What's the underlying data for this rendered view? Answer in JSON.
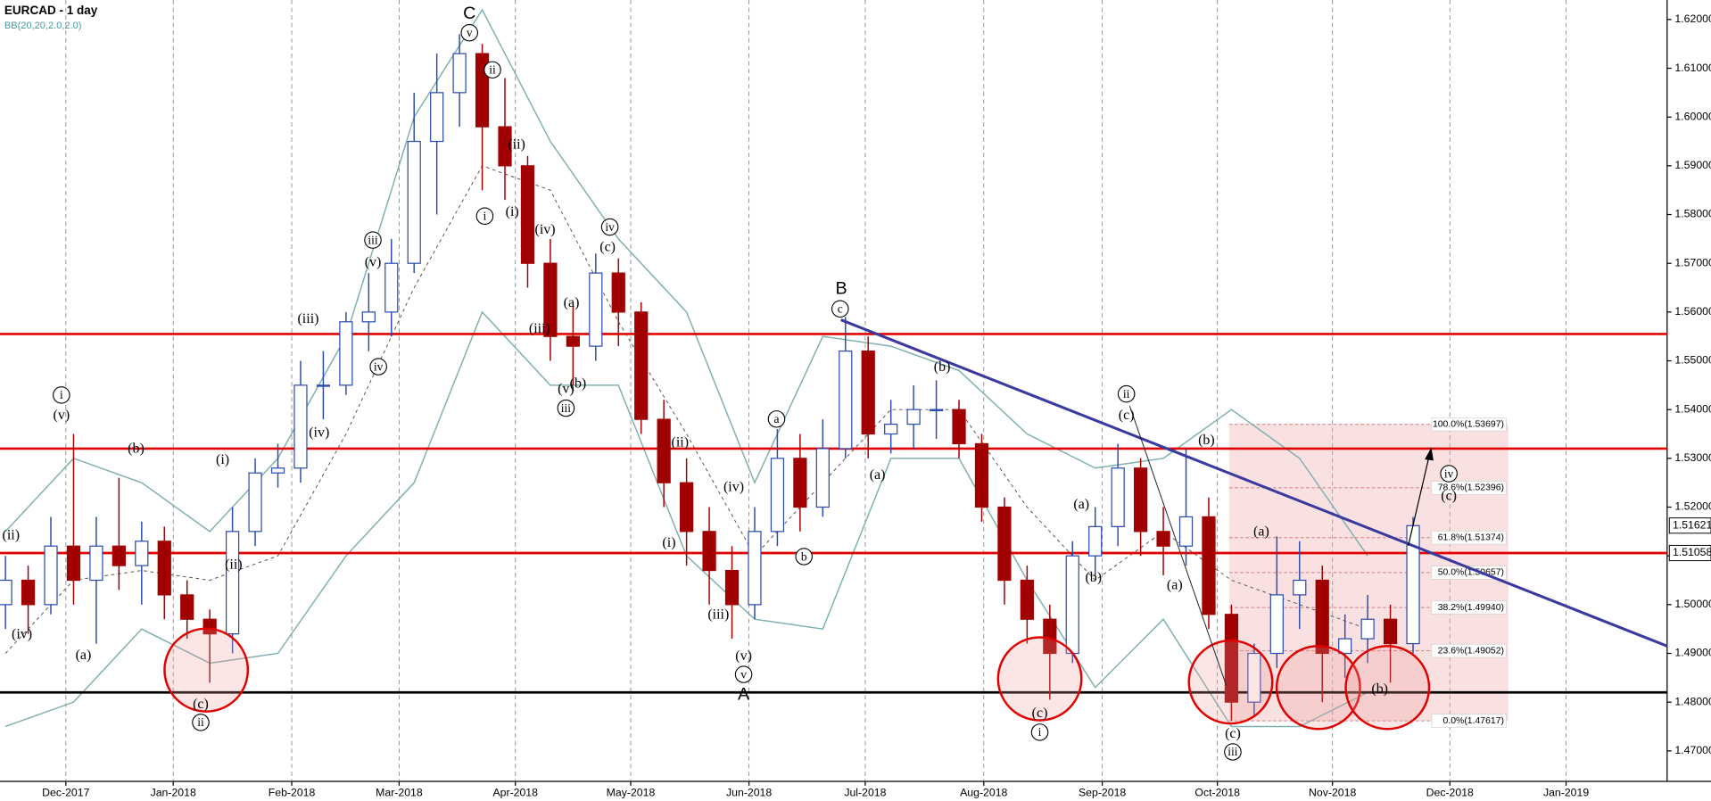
{
  "chart_data": {
    "type": "candlestick",
    "title": "EURCAD - 1 day",
    "xlim": [
      -0.24,
      73.19
    ],
    "ylim": [
      1.4642,
      1.624
    ],
    "xticks": [
      {
        "value": 2.66,
        "label": "Dec-2017"
      },
      {
        "value": 7.39,
        "label": "Jan-2018"
      },
      {
        "value": 12.61,
        "label": "Feb-2018"
      },
      {
        "value": 17.34,
        "label": "Mar-2018"
      },
      {
        "value": 22.46,
        "label": "Apr-2018"
      },
      {
        "value": 27.54,
        "label": "May-2018"
      },
      {
        "value": 32.75,
        "label": "Jun-2018"
      },
      {
        "value": 37.87,
        "label": "Jul-2018"
      },
      {
        "value": 43.09,
        "label": "Aug-2018"
      },
      {
        "value": 48.31,
        "label": "Sep-2018"
      },
      {
        "value": 53.38,
        "label": "Oct-2018"
      },
      {
        "value": 58.45,
        "label": "Nov-2018"
      },
      {
        "value": 63.62,
        "label": "Dec-2018"
      },
      {
        "value": 68.74,
        "label": "Jan-2019"
      }
    ],
    "yticks": [
      {
        "value": 1.47,
        "label": "1.47000"
      },
      {
        "value": 1.48,
        "label": "1.48000"
      },
      {
        "value": 1.49,
        "label": "1.49000"
      },
      {
        "value": 1.5,
        "label": "1.50000"
      },
      {
        "value": 1.51,
        "label": "1.51000"
      },
      {
        "value": 1.52,
        "label": "1.52000"
      },
      {
        "value": 1.53,
        "label": "1.53000"
      },
      {
        "value": 1.54,
        "label": "1.54000"
      },
      {
        "value": 1.55,
        "label": "1.55000"
      },
      {
        "value": 1.56,
        "label": "1.56000"
      },
      {
        "value": 1.57,
        "label": "1.57000"
      },
      {
        "value": 1.58,
        "label": "1.58000"
      },
      {
        "value": 1.59,
        "label": "1.59000"
      },
      {
        "value": 1.6,
        "label": "1.60000"
      },
      {
        "value": 1.61,
        "label": "1.61000"
      },
      {
        "value": 1.62,
        "label": "1.62000"
      }
    ],
    "xgrid": true,
    "up_color": "#2b4bb0",
    "down_color": "#a00000",
    "ohlc": {
      "open": [
        1.5,
        1.505,
        1.5,
        1.512,
        1.505,
        1.512,
        1.508,
        1.513,
        1.502,
        1.497,
        1.494,
        1.515,
        1.527,
        1.528,
        1.545,
        1.545,
        1.558,
        1.56,
        1.57,
        1.595,
        1.605,
        1.613,
        1.598,
        1.59,
        1.57,
        1.555,
        1.553,
        1.568,
        1.56,
        1.538,
        1.525,
        1.515,
        1.507,
        1.5,
        1.515,
        1.53,
        1.52,
        1.532,
        1.552,
        1.535,
        1.537,
        1.54,
        1.54,
        1.533,
        1.52,
        1.505,
        1.497,
        1.49,
        1.51,
        1.516,
        1.528,
        1.515,
        1.512,
        1.518,
        1.498,
        1.48,
        1.49,
        1.502,
        1.505,
        1.49,
        1.493,
        1.497,
        1.492
      ],
      "high": [
        1.51,
        1.508,
        1.518,
        1.535,
        1.518,
        1.526,
        1.517,
        1.516,
        1.505,
        1.499,
        1.52,
        1.53,
        1.533,
        1.55,
        1.552,
        1.56,
        1.568,
        1.575,
        1.605,
        1.613,
        1.617,
        1.615,
        1.608,
        1.592,
        1.575,
        1.562,
        1.572,
        1.571,
        1.562,
        1.542,
        1.53,
        1.52,
        1.512,
        1.52,
        1.536,
        1.535,
        1.538,
        1.559,
        1.555,
        1.542,
        1.545,
        1.546,
        1.542,
        1.535,
        1.522,
        1.508,
        1.5,
        1.513,
        1.52,
        1.533,
        1.53,
        1.52,
        1.532,
        1.522,
        1.5,
        1.492,
        1.514,
        1.513,
        1.508,
        1.498,
        1.502,
        1.5,
        1.518
      ],
      "low": [
        1.495,
        1.494,
        1.498,
        1.5,
        1.492,
        1.503,
        1.5,
        1.497,
        1.493,
        1.484,
        1.49,
        1.512,
        1.524,
        1.525,
        1.538,
        1.543,
        1.552,
        1.555,
        1.568,
        1.58,
        1.598,
        1.585,
        1.583,
        1.565,
        1.55,
        1.545,
        1.55,
        1.553,
        1.535,
        1.52,
        1.508,
        1.5,
        1.493,
        1.497,
        1.512,
        1.515,
        1.518,
        1.53,
        1.53,
        1.531,
        1.532,
        1.534,
        1.53,
        1.517,
        1.5,
        1.492,
        1.4805,
        1.488,
        1.506,
        1.512,
        1.51,
        1.506,
        1.508,
        1.495,
        1.4762,
        1.477,
        1.487,
        1.495,
        1.48,
        1.485,
        1.488,
        1.484,
        1.49
      ],
      "close": [
        1.505,
        1.5,
        1.512,
        1.505,
        1.512,
        1.508,
        1.513,
        1.502,
        1.497,
        1.494,
        1.515,
        1.527,
        1.528,
        1.545,
        1.545,
        1.558,
        1.56,
        1.57,
        1.595,
        1.605,
        1.613,
        1.598,
        1.59,
        1.57,
        1.555,
        1.553,
        1.568,
        1.56,
        1.538,
        1.525,
        1.515,
        1.507,
        1.5,
        1.515,
        1.53,
        1.52,
        1.532,
        1.552,
        1.535,
        1.537,
        1.54,
        1.54,
        1.533,
        1.52,
        1.505,
        1.497,
        1.49,
        1.51,
        1.516,
        1.528,
        1.515,
        1.512,
        1.518,
        1.498,
        1.48,
        1.49,
        1.502,
        1.505,
        1.49,
        1.493,
        1.497,
        1.492,
        1.5162
      ]
    },
    "bollinger": {
      "name": "BB(20,20,2.0,2.0)",
      "color": "#7fb0b0",
      "x": [
        0,
        3,
        6,
        9,
        12,
        15,
        18,
        21,
        24,
        27,
        30,
        33,
        36,
        39,
        42,
        45,
        48,
        51,
        54,
        57,
        60
      ],
      "upper": [
        1.515,
        1.53,
        1.525,
        1.515,
        1.53,
        1.555,
        1.6,
        1.622,
        1.595,
        1.575,
        1.56,
        1.525,
        1.555,
        1.553,
        1.548,
        1.535,
        1.528,
        1.53,
        1.54,
        1.53,
        1.51
      ],
      "middle": [
        1.49,
        1.505,
        1.507,
        1.505,
        1.51,
        1.535,
        1.565,
        1.59,
        1.585,
        1.558,
        1.535,
        1.51,
        1.525,
        1.54,
        1.54,
        1.52,
        1.505,
        1.515,
        1.505,
        1.5,
        1.495
      ],
      "lower": [
        1.475,
        1.48,
        1.495,
        1.488,
        1.49,
        1.51,
        1.525,
        1.56,
        1.545,
        1.545,
        1.51,
        1.497,
        1.495,
        1.53,
        1.53,
        1.505,
        1.483,
        1.497,
        1.475,
        1.475,
        1.482
      ]
    },
    "levels": [
      {
        "value": 1.5555,
        "color": "#e00000"
      },
      {
        "value": 1.532,
        "color": "#e00000"
      },
      {
        "value": 1.51058,
        "color": "#e00000"
      },
      {
        "value": 1.482,
        "color": "#000000"
      }
    ],
    "trendline": {
      "x": [
        36.8,
        73.19
      ],
      "y": [
        1.5584,
        1.4915
      ],
      "color": "#3a3aa0"
    },
    "fib": {
      "x": [
        53.9,
        66.2
      ],
      "color": "#d08080",
      "levels": [
        {
          "value": 1.53697,
          "label": "100.0%(1.53697)"
        },
        {
          "value": 1.52396,
          "label": "78.6%(1.52396)"
        },
        {
          "value": 1.51374,
          "label": "61.8%(1.51374)"
        },
        {
          "value": 1.50657,
          "label": "50.0%(1.50657)"
        },
        {
          "value": 1.4994,
          "label": "38.2%(1.49940)"
        },
        {
          "value": 1.49052,
          "label": "23.6%(1.49052)"
        },
        {
          "value": 1.47617,
          "label": "0.0%(1.47617)"
        }
      ]
    },
    "last_prices": [
      1.51621,
      1.51058
    ],
    "annotations": [
      {
        "text": "C"
      },
      {
        "text": "v",
        "circled": true
      },
      {
        "text": "ii",
        "circled": true
      },
      {
        "text": "i",
        "circled": true
      },
      {
        "text": "(i)"
      },
      {
        "text": "(ii)"
      },
      {
        "text": "(iv)"
      },
      {
        "text": "iv",
        "circled": true
      },
      {
        "text": "(c)"
      },
      {
        "text": "(a)"
      },
      {
        "text": "(b)"
      },
      {
        "text": "(v)"
      },
      {
        "text": "iii",
        "circled": true
      },
      {
        "text": "(iii)"
      },
      {
        "text": "iii",
        "circled": true
      },
      {
        "text": "(v)"
      },
      {
        "text": "(iii)"
      },
      {
        "text": "iv",
        "circled": true
      },
      {
        "text": "(iv)"
      },
      {
        "text": "i",
        "circled": true
      },
      {
        "text": "(v)"
      },
      {
        "text": "(b)"
      },
      {
        "text": "(i)"
      },
      {
        "text": "(ii)"
      },
      {
        "text": "(ii)"
      },
      {
        "text": "(iv)"
      },
      {
        "text": "(a)"
      },
      {
        "text": "(c)"
      },
      {
        "text": "ii",
        "circled": true
      },
      {
        "text": "(ii)"
      },
      {
        "text": "(i)"
      },
      {
        "text": "(iv)"
      },
      {
        "text": "(iii)"
      },
      {
        "text": "(v)"
      },
      {
        "text": "v",
        "circled": true
      },
      {
        "text": "A"
      },
      {
        "text": "a",
        "circled": true
      },
      {
        "text": "b",
        "circled": true
      },
      {
        "text": "B"
      },
      {
        "text": "c",
        "circled": true
      },
      {
        "text": "(a)"
      },
      {
        "text": "(b)"
      },
      {
        "text": "(a)"
      },
      {
        "text": "(b)"
      },
      {
        "text": "(c)"
      },
      {
        "text": "i",
        "circled": true
      },
      {
        "text": "ii",
        "circled": true
      },
      {
        "text": "(c)"
      },
      {
        "text": "(b)"
      },
      {
        "text": "(a)"
      },
      {
        "text": "(c)"
      },
      {
        "text": "iii",
        "circled": true
      },
      {
        "text": "(a)"
      },
      {
        "text": "(b)"
      },
      {
        "text": "iv",
        "circled": true
      },
      {
        "text": "(c)"
      }
    ]
  }
}
